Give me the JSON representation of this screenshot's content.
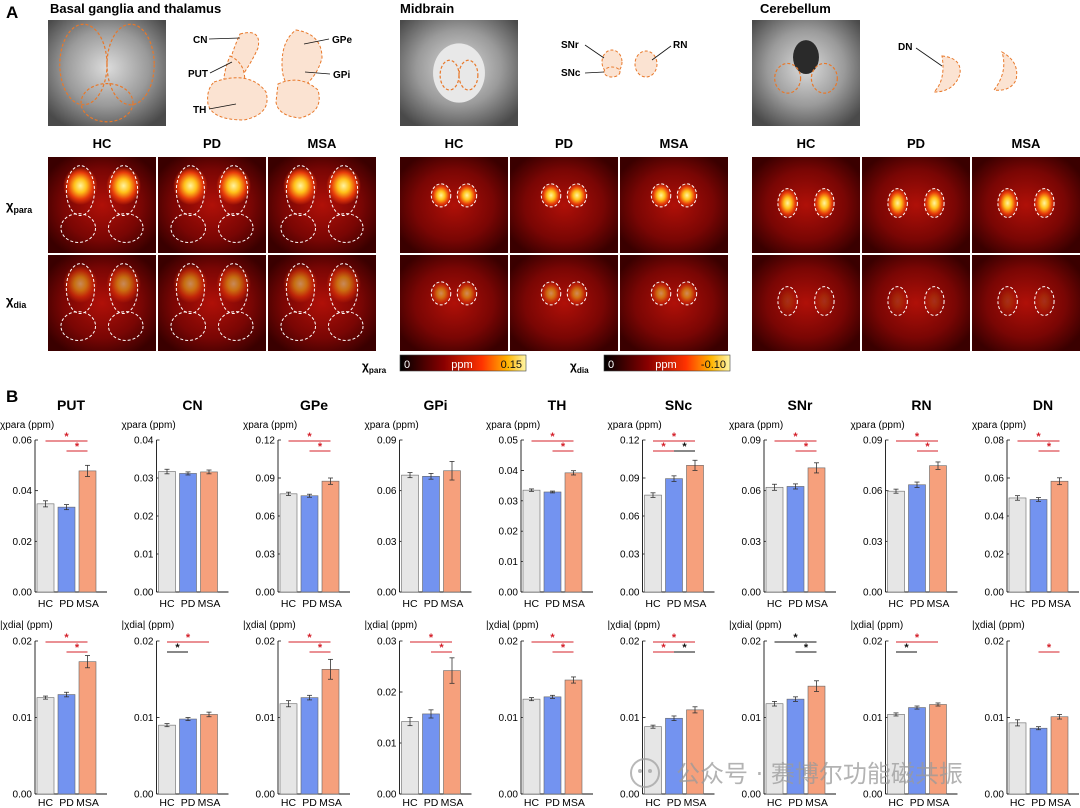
{
  "panel_a": {
    "letter": "A",
    "regions": [
      {
        "title": "Basal ganglia and thalamus",
        "labels": [
          "CN",
          "PUT",
          "TH",
          "GPe",
          "GPi"
        ]
      },
      {
        "title": "Midbrain",
        "labels": [
          "SNr",
          "SNc",
          "RN"
        ]
      },
      {
        "title": "Cerebellum",
        "labels": [
          "DN"
        ]
      }
    ],
    "groups": [
      "HC",
      "PD",
      "MSA"
    ],
    "row_labels": [
      {
        "sym": "χ",
        "sub": "para"
      },
      {
        "sym": "χ",
        "sub": "dia"
      }
    ],
    "colorbars": [
      {
        "sym": "χ",
        "sub": "para",
        "min": "0",
        "unit": "ppm",
        "max": "0.15"
      },
      {
        "sym": "χ",
        "sub": "dia",
        "min": "0",
        "unit": "ppm",
        "max": "-0.10"
      }
    ],
    "colors": {
      "roi_orange": "#e8782a",
      "roi_fill": "#fbe3d2",
      "heat_dark": "#2a0000",
      "heat_mid": "#d01808",
      "heat_hot": "#ffd21a"
    }
  },
  "panel_b": {
    "letter": "B",
    "colors": {
      "HC": "#e6e6e6",
      "PD": "#7393f0",
      "MSA": "#f6a07c",
      "sig_red": "#d4202a",
      "sig_black": "#111111"
    }
  },
  "chart_data": [
    {
      "type": "bar",
      "title": "PUT",
      "ylabel": "χpara (ppm)",
      "categories": [
        "HC",
        "PD",
        "MSA"
      ],
      "values": [
        0.0348,
        0.0335,
        0.0478
      ],
      "errors": [
        0.0012,
        0.001,
        0.0022
      ],
      "ylim": [
        0,
        0.06
      ],
      "yticks": [
        "0.00",
        "0.02",
        "0.04",
        "0.06"
      ],
      "significance": [
        {
          "pair": [
            0,
            2
          ],
          "mark": "*",
          "color": "red"
        },
        {
          "pair": [
            1,
            2
          ],
          "mark": "*",
          "color": "red"
        }
      ]
    },
    {
      "type": "bar",
      "title": "CN",
      "ylabel": "χpara (ppm)",
      "categories": [
        "HC",
        "PD",
        "MSA"
      ],
      "values": [
        0.0317,
        0.0312,
        0.0316
      ],
      "errors": [
        0.0006,
        0.0004,
        0.0005
      ],
      "ylim": [
        0,
        0.04
      ],
      "yticks": [
        "0.00",
        "0.01",
        "0.02",
        "0.03",
        "0.04"
      ],
      "significance": []
    },
    {
      "type": "bar",
      "title": "GPe",
      "ylabel": "χpara (ppm)",
      "categories": [
        "HC",
        "PD",
        "MSA"
      ],
      "values": [
        0.0775,
        0.076,
        0.0875
      ],
      "errors": [
        0.0013,
        0.0012,
        0.0025
      ],
      "ylim": [
        0,
        0.12
      ],
      "yticks": [
        "0.00",
        "0.03",
        "0.06",
        "0.09",
        "0.12"
      ],
      "significance": [
        {
          "pair": [
            0,
            2
          ],
          "mark": "*",
          "color": "red"
        },
        {
          "pair": [
            1,
            2
          ],
          "mark": "*",
          "color": "red"
        }
      ]
    },
    {
      "type": "bar",
      "title": "GPi",
      "ylabel": "χpara (ppm)",
      "categories": [
        "HC",
        "PD",
        "MSA"
      ],
      "values": [
        0.0692,
        0.0685,
        0.0718
      ],
      "errors": [
        0.0015,
        0.0017,
        0.0055
      ],
      "ylim": [
        0,
        0.09
      ],
      "yticks": [
        "0.00",
        "0.03",
        "0.06",
        "0.09"
      ],
      "significance": []
    },
    {
      "type": "bar",
      "title": "TH",
      "ylabel": "χpara (ppm)",
      "categories": [
        "HC",
        "PD",
        "MSA"
      ],
      "values": [
        0.0335,
        0.0329,
        0.0392
      ],
      "errors": [
        0.0004,
        0.0003,
        0.0007
      ],
      "ylim": [
        0,
        0.05
      ],
      "yticks": [
        "0.00",
        "0.01",
        "0.02",
        "0.03",
        "0.04",
        "0.05"
      ],
      "significance": [
        {
          "pair": [
            0,
            2
          ],
          "mark": "*",
          "color": "red"
        },
        {
          "pair": [
            1,
            2
          ],
          "mark": "*",
          "color": "red"
        }
      ]
    },
    {
      "type": "bar",
      "title": "SNc",
      "ylabel": "χpara (ppm)",
      "categories": [
        "HC",
        "PD",
        "MSA"
      ],
      "values": [
        0.0765,
        0.0895,
        0.1
      ],
      "errors": [
        0.0018,
        0.0022,
        0.004
      ],
      "ylim": [
        0,
        0.12
      ],
      "yticks": [
        "0.00",
        "0.03",
        "0.06",
        "0.09",
        "0.12"
      ],
      "significance": [
        {
          "pair": [
            0,
            2
          ],
          "mark": "*",
          "color": "red"
        },
        {
          "pair": [
            0,
            1
          ],
          "mark": "*",
          "color": "red"
        },
        {
          "pair": [
            1,
            2
          ],
          "mark": "*",
          "color": "black"
        }
      ]
    },
    {
      "type": "bar",
      "title": "SNr",
      "ylabel": "χpara (ppm)",
      "categories": [
        "HC",
        "PD",
        "MSA"
      ],
      "values": [
        0.062,
        0.0625,
        0.0735
      ],
      "errors": [
        0.0018,
        0.0015,
        0.003
      ],
      "ylim": [
        0,
        0.09
      ],
      "yticks": [
        "0.00",
        "0.03",
        "0.06",
        "0.09"
      ],
      "significance": [
        {
          "pair": [
            0,
            2
          ],
          "mark": "*",
          "color": "red"
        },
        {
          "pair": [
            1,
            2
          ],
          "mark": "*",
          "color": "red"
        }
      ]
    },
    {
      "type": "bar",
      "title": "RN",
      "ylabel": "χpara (ppm)",
      "categories": [
        "HC",
        "PD",
        "MSA"
      ],
      "values": [
        0.0597,
        0.0635,
        0.0748
      ],
      "errors": [
        0.0012,
        0.0016,
        0.0022
      ],
      "ylim": [
        0,
        0.09
      ],
      "yticks": [
        "0.00",
        "0.03",
        "0.06",
        "0.09"
      ],
      "significance": [
        {
          "pair": [
            0,
            2
          ],
          "mark": "*",
          "color": "red"
        },
        {
          "pair": [
            1,
            2
          ],
          "mark": "*",
          "color": "red"
        }
      ]
    },
    {
      "type": "bar",
      "title": "DN",
      "ylabel": "χpara (ppm)",
      "categories": [
        "HC",
        "PD",
        "MSA"
      ],
      "values": [
        0.0495,
        0.0487,
        0.0583
      ],
      "errors": [
        0.0012,
        0.001,
        0.0018
      ],
      "ylim": [
        0,
        0.08
      ],
      "yticks": [
        "0.00",
        "0.02",
        "0.04",
        "0.06",
        "0.08"
      ],
      "significance": [
        {
          "pair": [
            0,
            2
          ],
          "mark": "*",
          "color": "red"
        },
        {
          "pair": [
            1,
            2
          ],
          "mark": "*",
          "color": "red"
        }
      ]
    },
    {
      "type": "bar",
      "title": "",
      "ylabel": "|χdia| (ppm)",
      "categories": [
        "HC",
        "PD",
        "MSA"
      ],
      "values": [
        0.0126,
        0.013,
        0.0173
      ],
      "errors": [
        0.0002,
        0.0003,
        0.0008
      ],
      "ylim": [
        0,
        0.02
      ],
      "yticks": [
        "0.00",
        "0.01",
        "0.02"
      ],
      "significance": [
        {
          "pair": [
            0,
            2
          ],
          "mark": "*",
          "color": "red"
        },
        {
          "pair": [
            1,
            2
          ],
          "mark": "*",
          "color": "red"
        }
      ]
    },
    {
      "type": "bar",
      "title": "",
      "ylabel": "|χdia| (ppm)",
      "categories": [
        "HC",
        "PD",
        "MSA"
      ],
      "values": [
        0.009,
        0.0098,
        0.0104
      ],
      "errors": [
        0.0002,
        0.0002,
        0.0003
      ],
      "ylim": [
        0,
        0.02
      ],
      "yticks": [
        "0.00",
        "0.01",
        "0.02"
      ],
      "significance": [
        {
          "pair": [
            0,
            2
          ],
          "mark": "*",
          "color": "red"
        },
        {
          "pair": [
            0,
            1
          ],
          "mark": "*",
          "color": "black"
        }
      ]
    },
    {
      "type": "bar",
      "title": "",
      "ylabel": "|χdia| (ppm)",
      "categories": [
        "HC",
        "PD",
        "MSA"
      ],
      "values": [
        0.0118,
        0.0126,
        0.0163
      ],
      "errors": [
        0.0004,
        0.0003,
        0.0013
      ],
      "ylim": [
        0,
        0.02
      ],
      "yticks": [
        "0.00",
        "0.01",
        "0.02"
      ],
      "significance": [
        {
          "pair": [
            0,
            2
          ],
          "mark": "*",
          "color": "red"
        },
        {
          "pair": [
            1,
            2
          ],
          "mark": "*",
          "color": "red"
        }
      ]
    },
    {
      "type": "bar",
      "title": "",
      "ylabel": "|χdia| (ppm)",
      "categories": [
        "HC",
        "PD",
        "MSA"
      ],
      "values": [
        0.0142,
        0.0157,
        0.0242
      ],
      "errors": [
        0.0008,
        0.0008,
        0.0025
      ],
      "ylim": [
        0,
        0.03
      ],
      "yticks": [
        "0.00",
        "0.01",
        "0.02",
        "0.03"
      ],
      "significance": [
        {
          "pair": [
            0,
            2
          ],
          "mark": "*",
          "color": "red"
        },
        {
          "pair": [
            1,
            2
          ],
          "mark": "*",
          "color": "red"
        }
      ]
    },
    {
      "type": "bar",
      "title": "",
      "ylabel": "|χdia| (ppm)",
      "categories": [
        "HC",
        "PD",
        "MSA"
      ],
      "values": [
        0.0124,
        0.0127,
        0.0149
      ],
      "errors": [
        0.0002,
        0.0002,
        0.0004
      ],
      "ylim": [
        0,
        0.02
      ],
      "yticks": [
        "0.00",
        "0.01",
        "0.02"
      ],
      "significance": [
        {
          "pair": [
            0,
            2
          ],
          "mark": "*",
          "color": "red"
        },
        {
          "pair": [
            1,
            2
          ],
          "mark": "*",
          "color": "red"
        }
      ]
    },
    {
      "type": "bar",
      "title": "",
      "ylabel": "|χdia| (ppm)",
      "categories": [
        "HC",
        "PD",
        "MSA"
      ],
      "values": [
        0.0088,
        0.0099,
        0.011
      ],
      "errors": [
        0.0002,
        0.0003,
        0.0004
      ],
      "ylim": [
        0,
        0.02
      ],
      "yticks": [
        "0.00",
        "0.01",
        "0.02"
      ],
      "significance": [
        {
          "pair": [
            0,
            2
          ],
          "mark": "*",
          "color": "red"
        },
        {
          "pair": [
            0,
            1
          ],
          "mark": "*",
          "color": "red"
        },
        {
          "pair": [
            1,
            2
          ],
          "mark": "*",
          "color": "black"
        }
      ]
    },
    {
      "type": "bar",
      "title": "",
      "ylabel": "|χdia| (ppm)",
      "categories": [
        "HC",
        "PD",
        "MSA"
      ],
      "values": [
        0.0118,
        0.0124,
        0.0141
      ],
      "errors": [
        0.0003,
        0.0003,
        0.0007
      ],
      "ylim": [
        0,
        0.02
      ],
      "yticks": [
        "0.00",
        "0.01",
        "0.02"
      ],
      "significance": [
        {
          "pair": [
            0,
            2
          ],
          "mark": "*",
          "color": "black"
        },
        {
          "pair": [
            1,
            2
          ],
          "mark": "*",
          "color": "black"
        }
      ]
    },
    {
      "type": "bar",
      "title": "",
      "ylabel": "|χdia| (ppm)",
      "categories": [
        "HC",
        "PD",
        "MSA"
      ],
      "values": [
        0.0104,
        0.0113,
        0.0117
      ],
      "errors": [
        0.0002,
        0.0002,
        0.0002
      ],
      "ylim": [
        0,
        0.02
      ],
      "yticks": [
        "0.00",
        "0.01",
        "0.02"
      ],
      "significance": [
        {
          "pair": [
            0,
            2
          ],
          "mark": "*",
          "color": "red"
        },
        {
          "pair": [
            0,
            1
          ],
          "mark": "*",
          "color": "black"
        }
      ]
    },
    {
      "type": "bar",
      "title": "",
      "ylabel": "|χdia| (ppm)",
      "categories": [
        "HC",
        "PD",
        "MSA"
      ],
      "values": [
        0.0093,
        0.0086,
        0.0101
      ],
      "errors": [
        0.0004,
        0.0002,
        0.0003
      ],
      "ylim": [
        0,
        0.02
      ],
      "yticks": [
        "0.00",
        "0.01",
        "0.02"
      ],
      "significance": [
        {
          "pair": [
            1,
            2
          ],
          "mark": "*",
          "color": "red"
        }
      ]
    }
  ],
  "watermark": "公众号 · 赛博尔功能磁共振"
}
